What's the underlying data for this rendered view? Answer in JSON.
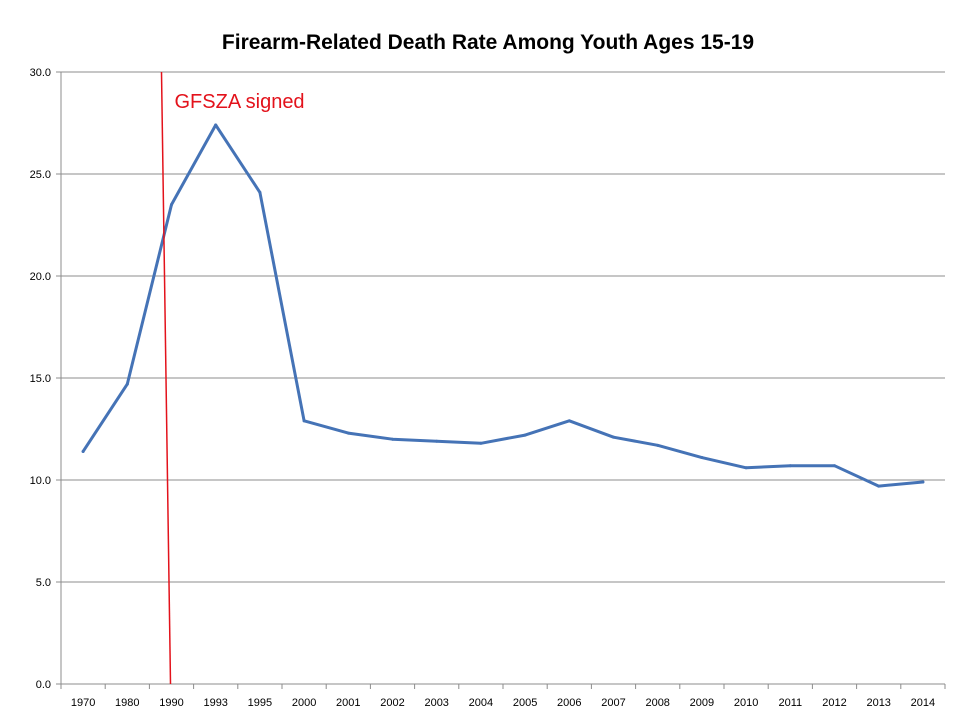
{
  "chart_data": {
    "type": "line",
    "title": "Firearm-Related Death Rate Among Youth Ages 15-19",
    "xlabel": "",
    "ylabel": "",
    "categories": [
      "1970",
      "1980",
      "1990",
      "1993",
      "1995",
      "2000",
      "2001",
      "2002",
      "2003",
      "2004",
      "2005",
      "2006",
      "2007",
      "2008",
      "2009",
      "2010",
      "2011",
      "2012",
      "2013",
      "2014"
    ],
    "series": [
      {
        "values": [
          11.4,
          14.7,
          23.5,
          27.4,
          24.1,
          12.9,
          12.3,
          12.0,
          11.9,
          11.8,
          12.2,
          12.9,
          12.1,
          11.7,
          11.1,
          10.6,
          10.7,
          10.7,
          9.7,
          9.9
        ],
        "color": "#4573b6"
      }
    ],
    "ylim": [
      0,
      30
    ],
    "yticks": [
      "0.0",
      "5.0",
      "10.0",
      "15.0",
      "20.0",
      "25.0",
      "30.0"
    ],
    "grid": true,
    "legend": "none",
    "annotations": [
      {
        "text": "GFSZA signed",
        "marks_category": "1990",
        "color": "#e3121b"
      }
    ]
  },
  "colors": {
    "series": "#4573b6",
    "annotation": "#e3121b",
    "grid": "#8c8c8c",
    "axis": "#8c8c8c"
  }
}
